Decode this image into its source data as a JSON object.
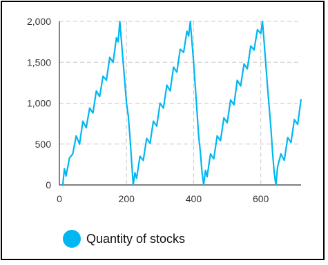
{
  "chart_data": {
    "type": "line",
    "series": [
      {
        "name": "Quantity of stocks",
        "color": "#00b7f1",
        "x": [
          10,
          15,
          20,
          30,
          40,
          50,
          60,
          70,
          80,
          90,
          100,
          110,
          120,
          130,
          140,
          150,
          160,
          170,
          175,
          180,
          190,
          200,
          205,
          210,
          215,
          220,
          225,
          230,
          240,
          250,
          260,
          270,
          280,
          290,
          300,
          310,
          320,
          330,
          340,
          350,
          360,
          370,
          380,
          385,
          390,
          400,
          410,
          415,
          420,
          425,
          430,
          435,
          440,
          450,
          460,
          470,
          480,
          490,
          500,
          510,
          520,
          530,
          540,
          550,
          560,
          570,
          580,
          590,
          600,
          605,
          610,
          620,
          630,
          635,
          640,
          645,
          650,
          660,
          670,
          680,
          690,
          700,
          710,
          720
        ],
        "y": [
          0,
          200,
          110,
          330,
          380,
          600,
          500,
          780,
          700,
          940,
          880,
          1150,
          1080,
          1330,
          1280,
          1560,
          1500,
          1800,
          1750,
          2000,
          1500,
          1000,
          850,
          600,
          300,
          0,
          150,
          80,
          350,
          300,
          570,
          510,
          780,
          720,
          1000,
          940,
          1220,
          1150,
          1440,
          1380,
          1660,
          1620,
          1880,
          1820,
          2000,
          1500,
          900,
          600,
          400,
          150,
          0,
          180,
          100,
          380,
          320,
          600,
          540,
          820,
          760,
          1040,
          980,
          1280,
          1210,
          1480,
          1420,
          1700,
          1650,
          1900,
          1850,
          2000,
          1750,
          1200,
          700,
          400,
          150,
          0,
          220,
          380,
          300,
          580,
          520,
          800,
          740,
          1050
        ]
      }
    ],
    "xlim": [
      0,
      720
    ],
    "ylim": [
      0,
      2000
    ],
    "xticks": [
      "0",
      "200",
      "400",
      "600"
    ],
    "yticks": [
      "0",
      "500",
      "1,000",
      "1,500",
      "2,000"
    ],
    "grid": true,
    "legend": "bottom-left"
  }
}
